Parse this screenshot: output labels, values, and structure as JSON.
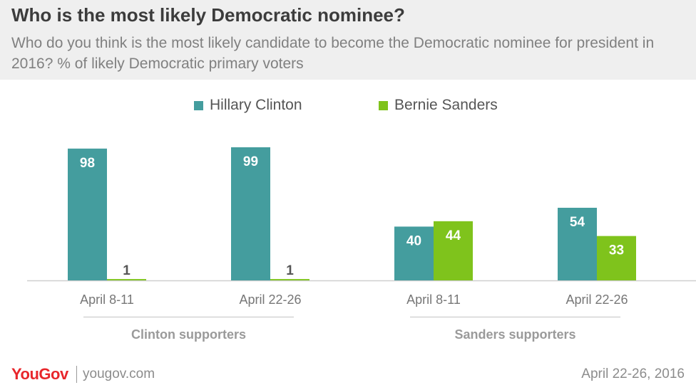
{
  "header": {
    "title": "Who is the most likely Democratic nominee?",
    "subtitle": "Who do you think is the most likely candidate to become the Democratic nominee for president in 2016? % of likely Democratic primary voters"
  },
  "chart_data": {
    "type": "bar",
    "title": "Who is the most likely Democratic nominee?",
    "subtitle": "Who do you think is the most likely candidate to become the Democratic nominee for president in 2016? % of likely Democratic primary voters",
    "categories": [
      "April 8-11",
      "April 22-26",
      "April 8-11",
      "April 22-26"
    ],
    "groups": [
      {
        "label": "Clinton supporters",
        "categories": [
          "April 8-11",
          "April 22-26"
        ]
      },
      {
        "label": "Sanders supporters",
        "categories": [
          "April 8-11",
          "April 22-26"
        ]
      }
    ],
    "series": [
      {
        "name": "Hillary Clinton",
        "color": "#449d9e",
        "values": [
          98,
          99,
          40,
          54
        ]
      },
      {
        "name": "Bernie Sanders",
        "color": "#7fc31c",
        "values": [
          1,
          1,
          44,
          33
        ]
      }
    ],
    "ylim": [
      0,
      100
    ],
    "legend": "top-center",
    "grid": false
  },
  "footer": {
    "brand": "YouGov",
    "site": "yougov.com",
    "date": "April 22-26, 2016"
  }
}
